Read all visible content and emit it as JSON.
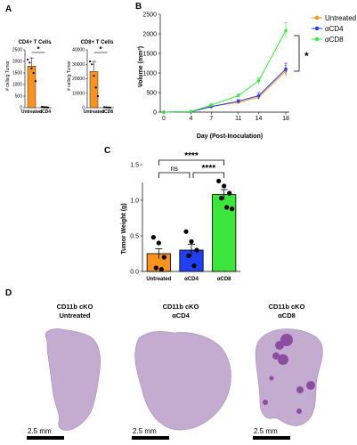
{
  "panels": {
    "a": "A",
    "b": "B",
    "c": "C",
    "d": "D"
  },
  "colors": {
    "untreated": "#f7931e",
    "acd4": "#1f3ff0",
    "acd8": "#3ce63c",
    "tissue": "#c4acd0",
    "tissue_dark": "#8c4ea0"
  },
  "chart_data": [
    {
      "id": "cd4",
      "type": "bar",
      "title": "CD4+ T Cells",
      "ylabel": "# cells/g Tumor",
      "categories": [
        "Untreated",
        "αCD4"
      ],
      "values": [
        1800,
        30
      ],
      "errors": [
        350,
        20
      ],
      "points": [
        [
          2080,
          1950,
          1700,
          1500,
          1150
        ],
        [
          40,
          20,
          10,
          5
        ]
      ],
      "yticks": [
        "0",
        "500",
        "1000",
        "1500",
        "2000",
        "2500"
      ],
      "ylim": [
        0,
        2500
      ],
      "significance": "*"
    },
    {
      "id": "cd8",
      "type": "bar",
      "title": "CD8+ T Cells",
      "ylabel": "# cells/g Tumor",
      "categories": [
        "Untreated",
        "αCD8"
      ],
      "values": [
        25000,
        200
      ],
      "errors": [
        7000,
        100
      ],
      "points": [
        [
          32000,
          30000,
          22000,
          14000,
          8000
        ],
        [
          400,
          250,
          150,
          100
        ]
      ],
      "yticks": [
        "0",
        "10000",
        "20000",
        "30000",
        "40000"
      ],
      "ylim": [
        0,
        40000
      ],
      "significance": "*"
    },
    {
      "id": "volume",
      "type": "line",
      "xlabel": "Day (Post-Inoculation)",
      "ylabel": "Volume (mm³)",
      "x": [
        0,
        4,
        7,
        11,
        14,
        18
      ],
      "xticks": [
        "0",
        "4",
        "7",
        "11",
        "14",
        "18"
      ],
      "yticks": [
        "0",
        "500",
        "1000",
        "1500",
        "2000",
        "2500"
      ],
      "ylim": [
        0,
        2500
      ],
      "series": [
        {
          "name": "Untreated",
          "values": [
            0,
            10,
            150,
            250,
            380,
            1050
          ],
          "errors": [
            0,
            5,
            20,
            30,
            60,
            150
          ]
        },
        {
          "name": "αCD4",
          "values": [
            0,
            10,
            140,
            280,
            420,
            1100
          ],
          "errors": [
            0,
            5,
            20,
            40,
            80,
            150
          ]
        },
        {
          "name": "αCD8",
          "values": [
            0,
            15,
            180,
            420,
            800,
            2080
          ],
          "errors": [
            0,
            5,
            30,
            40,
            80,
            200
          ]
        }
      ],
      "legend": "right",
      "significance": "*"
    },
    {
      "id": "weight",
      "type": "bar",
      "ylabel": "Tumor Weight (g)",
      "categories": [
        "Untreated",
        "αCD4",
        "αCD8"
      ],
      "values": [
        0.25,
        0.3,
        1.08
      ],
      "errors": [
        0.07,
        0.08,
        0.07
      ],
      "points": [
        [
          0.48,
          0.4,
          0.2,
          0.05,
          0.03
        ],
        [
          0.56,
          0.42,
          0.3,
          0.22,
          0.08
        ],
        [
          1.27,
          1.2,
          1.1,
          1.03,
          0.9,
          0.88
        ]
      ],
      "yticks": [
        "0.0",
        "0.5",
        "1.0",
        "1.5"
      ],
      "ylim": [
        0,
        1.5
      ],
      "comparisons": [
        {
          "pair": [
            0,
            2
          ],
          "label": "****"
        },
        {
          "pair": [
            0,
            1
          ],
          "label": "ns"
        },
        {
          "pair": [
            1,
            2
          ],
          "label": "****"
        }
      ]
    }
  ],
  "histology": [
    {
      "title_line1": "CD11b cKO",
      "title_line2": "Untreated",
      "scale": "2.5 mm"
    },
    {
      "title_line1": "CD11b cKO",
      "title_line2": "αCD4",
      "scale": "2.5 mm"
    },
    {
      "title_line1": "CD11b cKO",
      "title_line2": "αCD8",
      "scale": "2.5 mm"
    }
  ]
}
